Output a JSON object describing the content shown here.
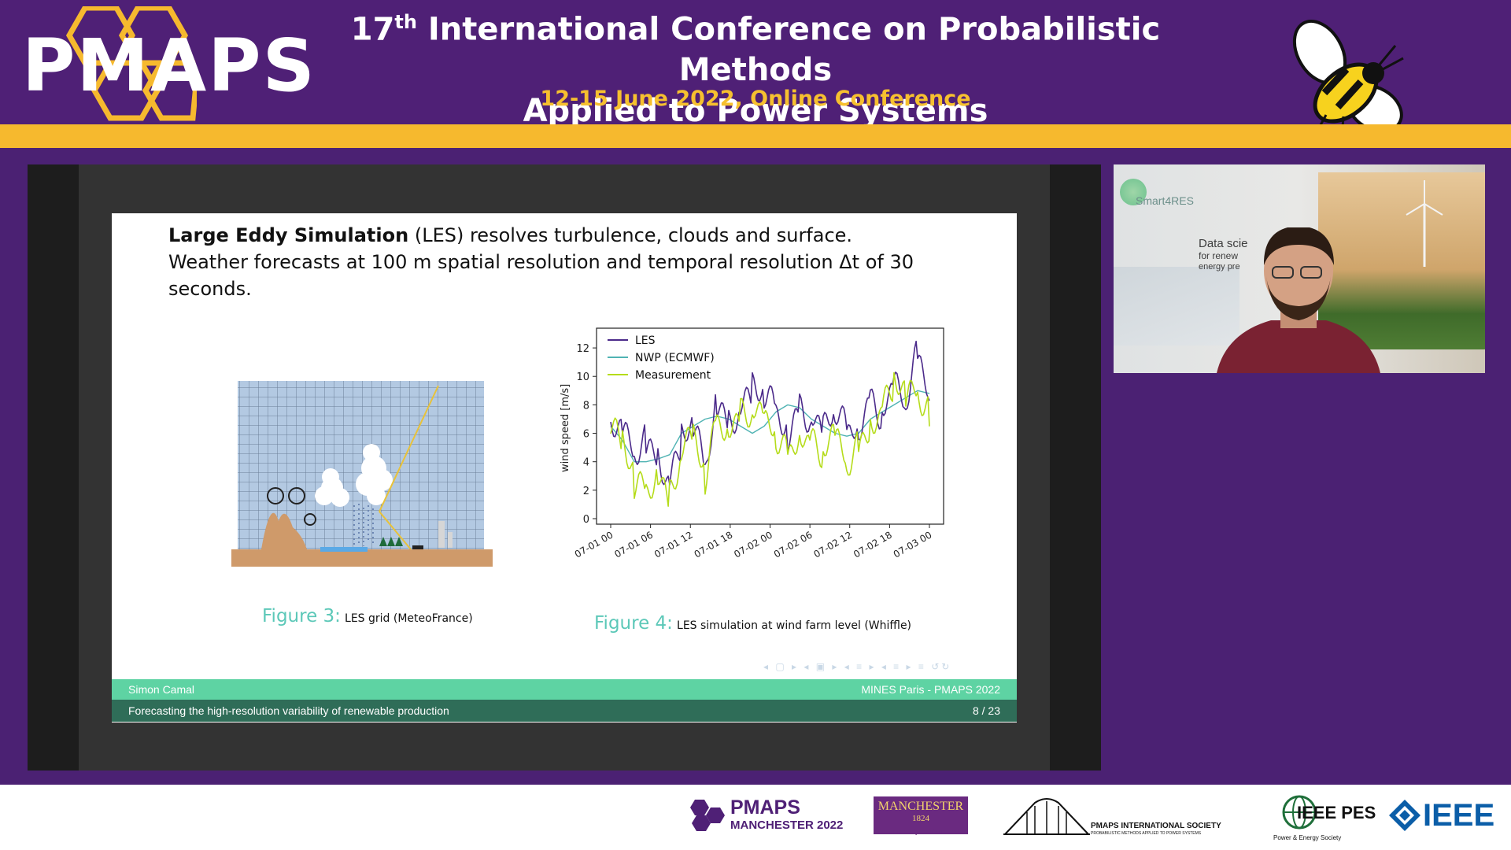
{
  "header": {
    "logo": "PMAPS",
    "title_line1_pre": "17",
    "title_line1_sup": "th",
    "title_line1_post": " International Conference on Probabilistic Methods",
    "title_line2": "Applied to Power Systems",
    "date": "12-15 June 2022, Online Conference"
  },
  "slide": {
    "line1_bold": "Large Eddy Simulation",
    "line1_rest": " (LES) resolves turbulence, clouds and surface.",
    "line2": "Weather forecasts at 100 m spatial resolution and temporal resolution Δt of 30",
    "line3": "seconds.",
    "fig3_num": "Figure 3:",
    "fig3_text": "LES grid (MeteoFrance)",
    "fig4_num": "Figure 4:",
    "fig4_text": "LES simulation at wind farm level (Whiffle)",
    "footer_author": "Simon Camal",
    "footer_affil": "MINES Paris - PMAPS 2022",
    "footer_title": "Forecasting the high-resolution variability of renewable production",
    "footer_page": "8 / 23"
  },
  "chart_data": {
    "type": "line",
    "ylabel": "wind speed [m/s]",
    "xlabel": "",
    "ylim": [
      0,
      13
    ],
    "yticks": [
      "0",
      "2",
      "4",
      "6",
      "8",
      "10",
      "12"
    ],
    "xticks": [
      "07-01 00",
      "07-01 06",
      "07-01 12",
      "07-01 18",
      "07-02 00",
      "07-02 06",
      "07-02 12",
      "07-02 18",
      "07-03 00"
    ],
    "legend_position": "top-left",
    "series": [
      {
        "name": "LES",
        "color": "#4b2a8a",
        "values": [
          6.2,
          5.8,
          4.5,
          5.5,
          4.8,
          2.5,
          5.5,
          6.2,
          3.5,
          8.5,
          7.0,
          7.8,
          8.8,
          8.5,
          7.5,
          6.2,
          8.0,
          7.2,
          5.8,
          7.5,
          6.0,
          6.8,
          8.5,
          7.5,
          9.0,
          8.0,
          11.5,
          9.0
        ]
      },
      {
        "name": "NWP (ECMWF)",
        "color": "#4fb3b3",
        "values": [
          6.5,
          5.5,
          4.0,
          4.0,
          4.2,
          4.5,
          6.0,
          6.5,
          7.0,
          7.2,
          7.0,
          6.5,
          6.0,
          6.5,
          7.5,
          8.0,
          7.8,
          7.0,
          6.5,
          6.0,
          5.8,
          6.0,
          7.0,
          7.5,
          8.0,
          8.5,
          9.0,
          8.8
        ]
      },
      {
        "name": "Measurement",
        "color": "#b5dc1a",
        "values": [
          6.0,
          5.2,
          2.5,
          2.2,
          3.5,
          1.5,
          4.5,
          5.5,
          3.0,
          7.0,
          6.8,
          7.2,
          7.5,
          6.5,
          6.0,
          4.5,
          6.5,
          5.2,
          4.5,
          5.5,
          4.0,
          5.2,
          7.0,
          7.5,
          9.5,
          8.2,
          9.0,
          7.5
        ]
      }
    ]
  },
  "webcam": {
    "brand": "Smart4RES",
    "snippet1": "Data scie",
    "snippet2": "for renew",
    "snippet3": "energy pre"
  },
  "sponsors": {
    "pmaps_logo": "PMAPS",
    "pmaps_sub": "MANCHESTER 2022",
    "manchester": "MANCHESTER",
    "manchester_year": "1824",
    "manchester_sub": "The University of Manchester",
    "pmaps_intl": "PMAPS INTERNATIONAL SOCIETY",
    "pmaps_intl_sub": "PROBABILISTIC METHODS APPLIED TO POWER SYSTEMS",
    "pes": "IEEE PES",
    "pes_sub": "Power & Energy Society",
    "ieee": "IEEE"
  }
}
